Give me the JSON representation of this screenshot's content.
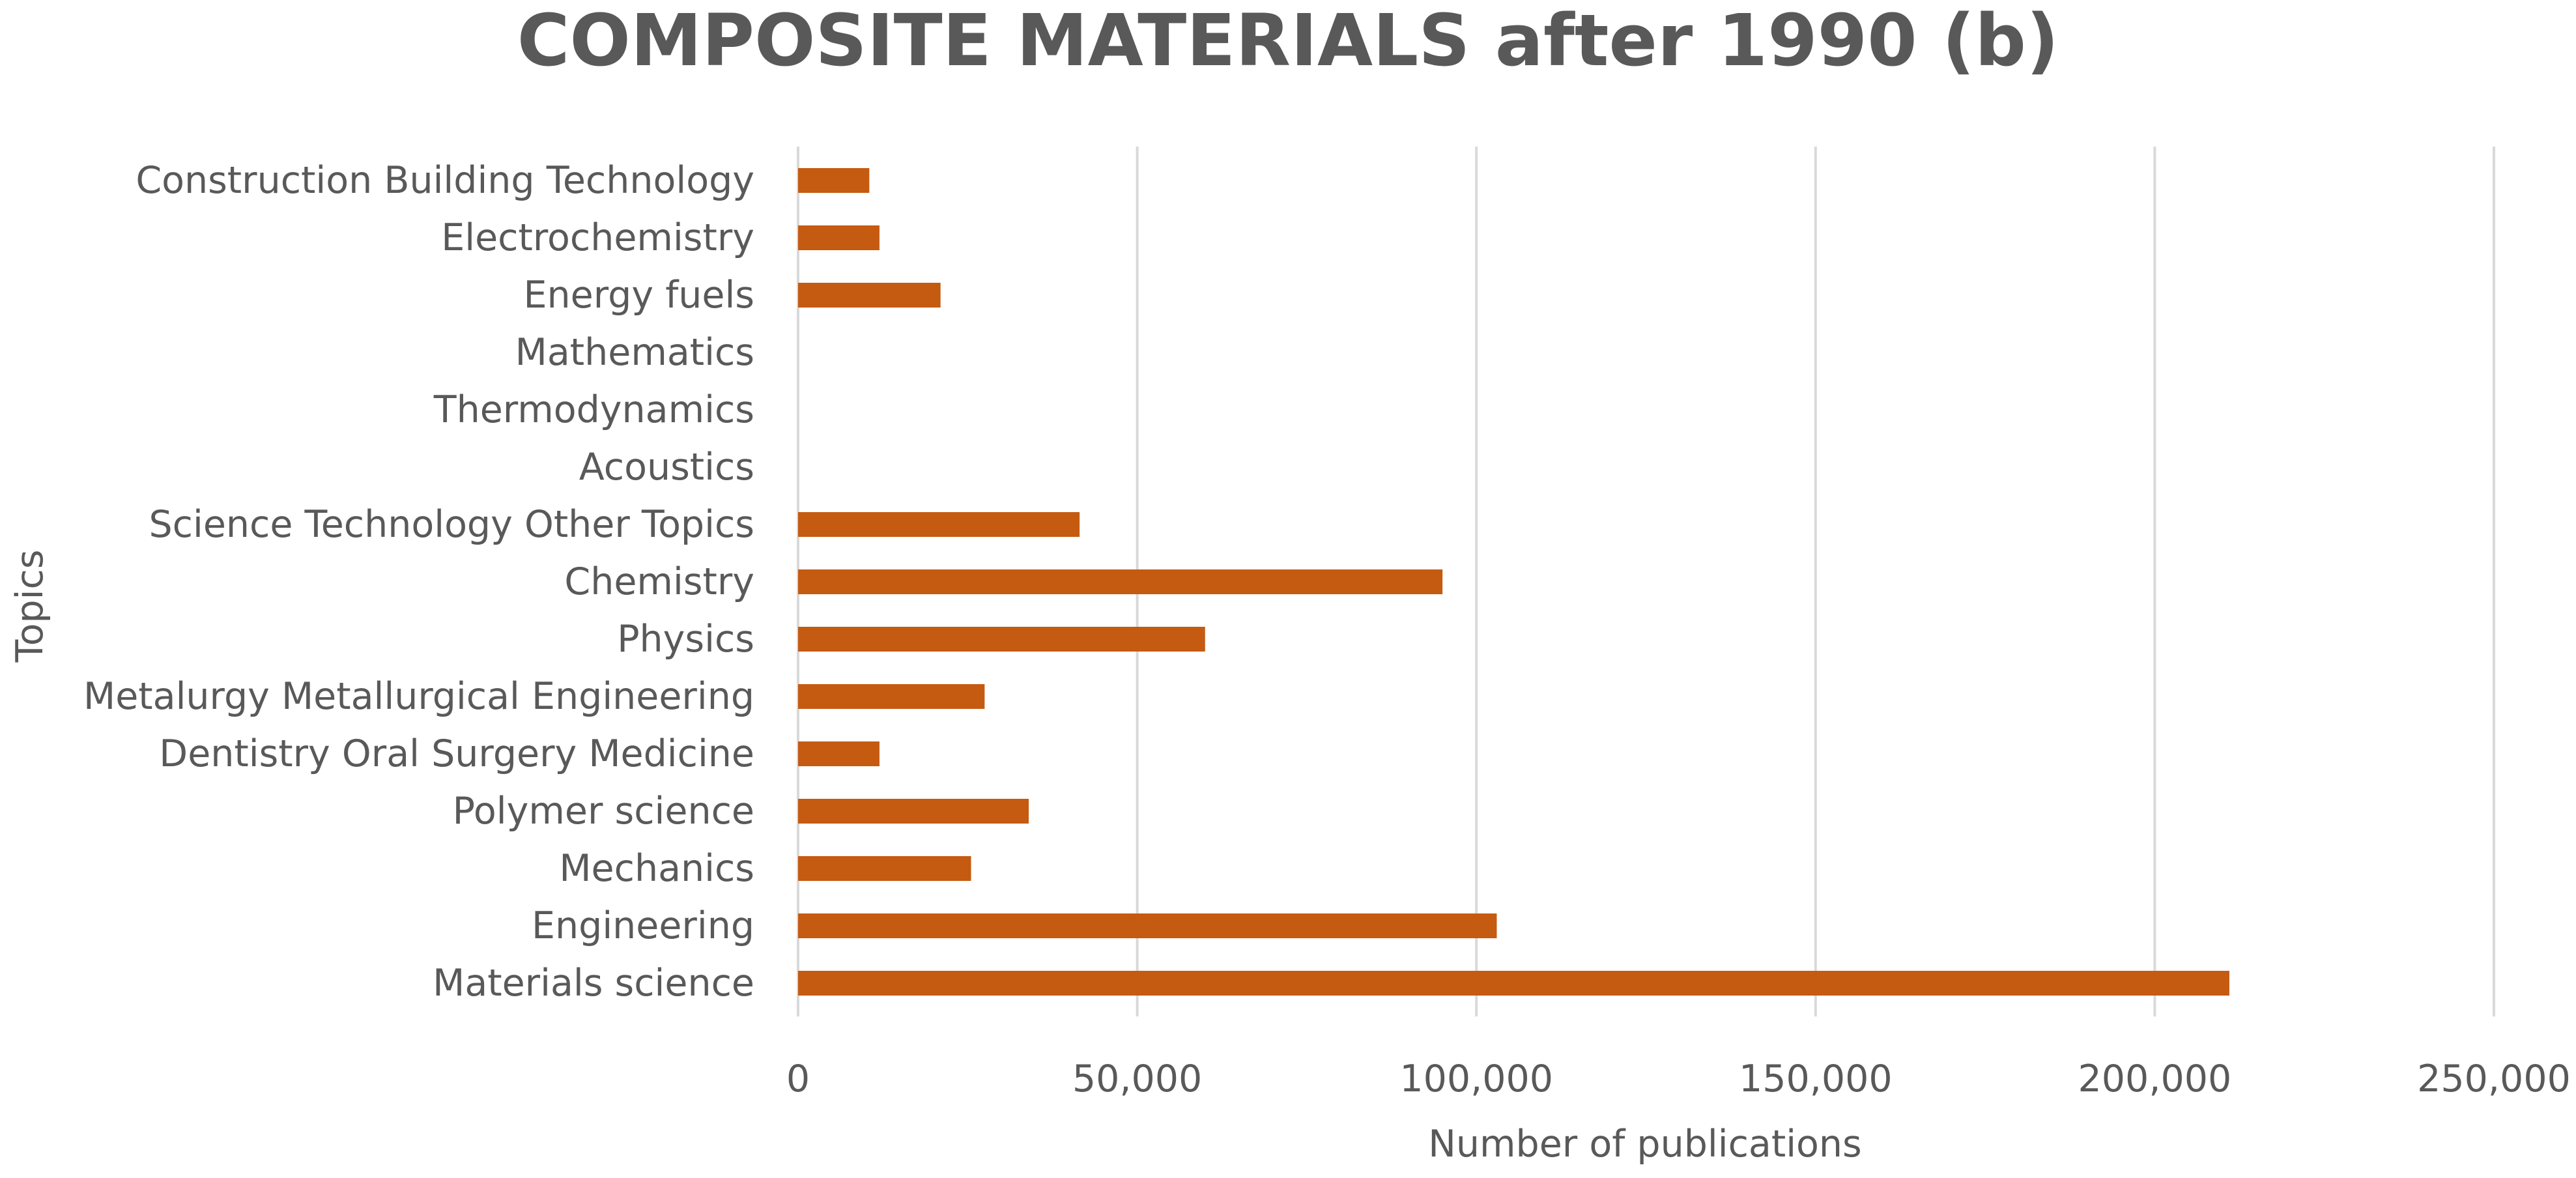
{
  "chart_data": {
    "type": "bar",
    "orientation": "horizontal",
    "title": "COMPOSITE MATERIALS after 1990 (b)",
    "xlabel": "Number of publications",
    "ylabel": "Topics",
    "xlim": [
      0,
      250000
    ],
    "x_ticks": [
      0,
      50000,
      100000,
      150000,
      200000,
      250000
    ],
    "x_tick_labels": [
      "0",
      "50,000",
      "100,000",
      "150,000",
      "200,000",
      "250,000"
    ],
    "grid": true,
    "bar_color": "#c55a11",
    "categories": [
      "Construction Building Technology",
      "Electrochemistry",
      "Energy fuels",
      "Mathematics",
      "Thermodynamics",
      "Acoustics",
      "Science Technology Other Topics",
      "Chemistry",
      "Physics",
      "Metalurgy Metallurgical Engineering",
      "Dentistry Oral Surgery Medicine",
      "Polymer science",
      "Mechanics",
      "Engineering",
      "Materials science"
    ],
    "values": [
      10500,
      12000,
      21000,
      0,
      0,
      0,
      41500,
      95000,
      60000,
      27500,
      12000,
      34000,
      25500,
      103000,
      211000
    ]
  }
}
